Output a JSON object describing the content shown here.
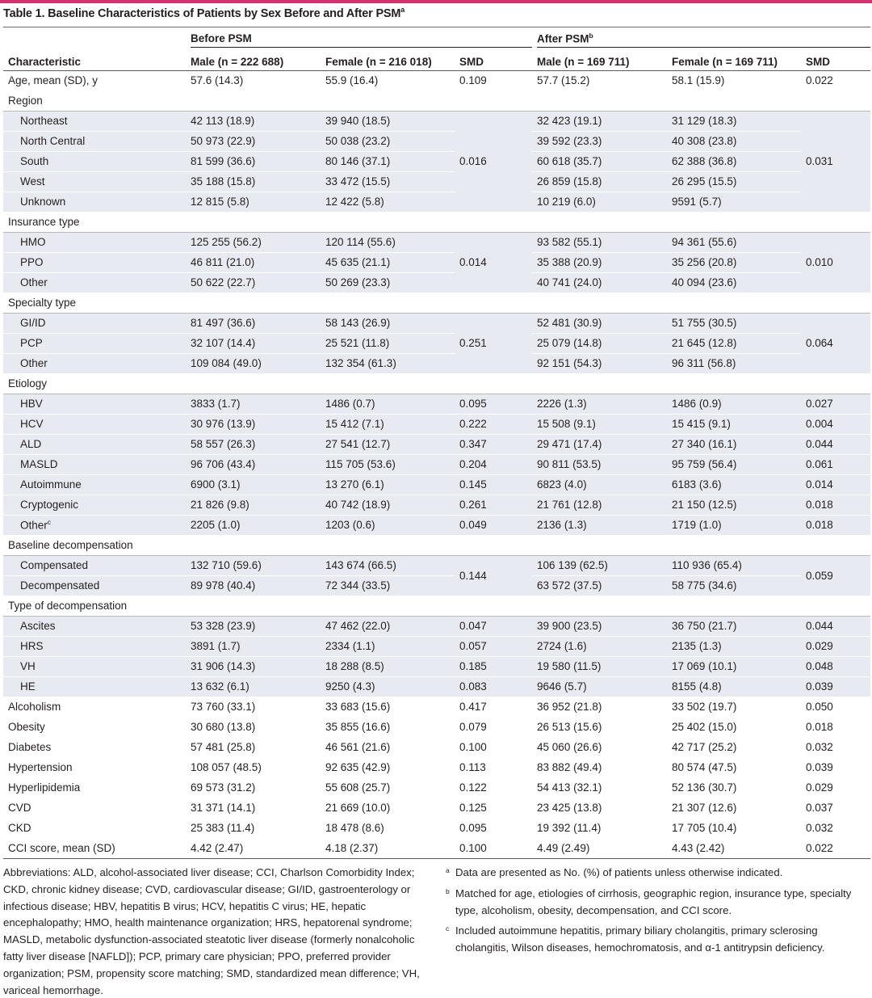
{
  "title": {
    "text": "Table 1. Baseline Characteristics of Patients by Sex Before and After PSM",
    "sup": "a"
  },
  "colors": {
    "accent": "#d2336d",
    "shade": "#e8eaf2"
  },
  "header": {
    "before_group": "Before PSM",
    "after_group": "After PSM",
    "after_sup": "b",
    "characteristic": "Characteristic",
    "before_male": "Male (n = 222 688)",
    "before_female": "Female (n = 216 018)",
    "before_smd": "SMD",
    "after_male": "Male (n = 169 711)",
    "after_female": "Female (n = 169 711)",
    "after_smd": "SMD"
  },
  "rows": {
    "age": {
      "label": "Age, mean (SD), y",
      "bm": "57.6 (14.3)",
      "bf": "55.9 (16.4)",
      "bs": "0.109",
      "am": "57.7 (15.2)",
      "af": "58.1 (15.9)",
      "as": "0.022"
    },
    "region": {
      "label": "Region",
      "smd_before": "0.016",
      "smd_after": "0.031",
      "items": [
        {
          "label": "Northeast",
          "bm": "42 113 (18.9)",
          "bf": "39 940 (18.5)",
          "am": "32 423 (19.1)",
          "af": "31 129 (18.3)"
        },
        {
          "label": "North Central",
          "bm": "50 973 (22.9)",
          "bf": "50 038 (23.2)",
          "am": "39 592 (23.3)",
          "af": "40 308 (23.8)"
        },
        {
          "label": "South",
          "bm": "81 599 (36.6)",
          "bf": "80 146 (37.1)",
          "am": "60 618 (35.7)",
          "af": "62 388 (36.8)"
        },
        {
          "label": "West",
          "bm": "35 188 (15.8)",
          "bf": "33 472 (15.5)",
          "am": "26 859 (15.8)",
          "af": "26 295 (15.5)"
        },
        {
          "label": "Unknown",
          "bm": "12 815 (5.8)",
          "bf": "12 422 (5.8)",
          "am": "10 219 (6.0)",
          "af": "9591 (5.7)"
        }
      ]
    },
    "insurance": {
      "label": "Insurance type",
      "smd_before": "0.014",
      "smd_after": "0.010",
      "items": [
        {
          "label": "HMO",
          "bm": "125 255 (56.2)",
          "bf": "120 114 (55.6)",
          "am": "93 582 (55.1)",
          "af": "94 361 (55.6)"
        },
        {
          "label": "PPO",
          "bm": "46 811 (21.0)",
          "bf": "45 635 (21.1)",
          "am": "35 388 (20.9)",
          "af": "35 256 (20.8)"
        },
        {
          "label": "Other",
          "bm": "50 622 (22.7)",
          "bf": "50 269 (23.3)",
          "am": "40 741 (24.0)",
          "af": "40 094 (23.6)"
        }
      ]
    },
    "specialty": {
      "label": "Specialty type",
      "smd_before": "0.251",
      "smd_after": "0.064",
      "items": [
        {
          "label": "GI/ID",
          "bm": "81 497 (36.6)",
          "bf": "58 143 (26.9)",
          "am": "52 481 (30.9)",
          "af": "51 755 (30.5)"
        },
        {
          "label": "PCP",
          "bm": "32 107 (14.4)",
          "bf": "25 521 (11.8)",
          "am": "25 079 (14.8)",
          "af": "21 645 (12.8)"
        },
        {
          "label": "Other",
          "bm": "109 084 (49.0)",
          "bf": "132 354 (61.3)",
          "am": "92 151 (54.3)",
          "af": "96 311 (56.8)"
        }
      ]
    },
    "etiology": {
      "label": "Etiology",
      "items": [
        {
          "label": "HBV",
          "bm": "3833 (1.7)",
          "bf": "1486 (0.7)",
          "bs": "0.095",
          "am": "2226 (1.3)",
          "af": "1486 (0.9)",
          "as": "0.027"
        },
        {
          "label": "HCV",
          "bm": "30 976 (13.9)",
          "bf": "15 412 (7.1)",
          "bs": "0.222",
          "am": "15 508 (9.1)",
          "af": "15 415 (9.1)",
          "as": "0.004"
        },
        {
          "label": "ALD",
          "bm": "58 557 (26.3)",
          "bf": "27 541 (12.7)",
          "bs": "0.347",
          "am": "29 471 (17.4)",
          "af": "27 340 (16.1)",
          "as": "0.044"
        },
        {
          "label": "MASLD",
          "bm": "96 706 (43.4)",
          "bf": "115 705 (53.6)",
          "bs": "0.204",
          "am": "90 811 (53.5)",
          "af": "95 759 (56.4)",
          "as": "0.061"
        },
        {
          "label": "Autoimmune",
          "bm": "6900 (3.1)",
          "bf": "13 270 (6.1)",
          "bs": "0.145",
          "am": "6823 (4.0)",
          "af": "6183 (3.6)",
          "as": "0.014"
        },
        {
          "label": "Cryptogenic",
          "bm": "21 826 (9.8)",
          "bf": "40 742 (18.9)",
          "bs": "0.261",
          "am": "21 761 (12.8)",
          "af": "21 150 (12.5)",
          "as": "0.018"
        },
        {
          "label": "Other",
          "sup": "c",
          "bm": "2205 (1.0)",
          "bf": "1203 (0.6)",
          "bs": "0.049",
          "am": "2136 (1.3)",
          "af": "1719 (1.0)",
          "as": "0.018"
        }
      ]
    },
    "decomp": {
      "label": "Baseline decompensation",
      "smd_before": "0.144",
      "smd_after": "0.059",
      "items": [
        {
          "label": "Compensated",
          "bm": "132 710 (59.6)",
          "bf": "143 674 (66.5)",
          "am": "106 139 (62.5)",
          "af": "110 936 (65.4)"
        },
        {
          "label": "Decompensated",
          "bm": "89 978 (40.4)",
          "bf": "72 344 (33.5)",
          "am": "63 572 (37.5)",
          "af": "58 775 (34.6)"
        }
      ]
    },
    "decomp_type": {
      "label": "Type of decompensation",
      "items": [
        {
          "label": "Ascites",
          "bm": "53 328 (23.9)",
          "bf": "47 462 (22.0)",
          "bs": "0.047",
          "am": "39 900 (23.5)",
          "af": "36 750 (21.7)",
          "as": "0.044"
        },
        {
          "label": "HRS",
          "bm": "3891 (1.7)",
          "bf": "2334 (1.1)",
          "bs": "0.057",
          "am": "2724 (1.6)",
          "af": "2135 (1.3)",
          "as": "0.029"
        },
        {
          "label": "VH",
          "bm": "31 906 (14.3)",
          "bf": "18 288 (8.5)",
          "bs": "0.185",
          "am": "19 580 (11.5)",
          "af": "17 069 (10.1)",
          "as": "0.048"
        },
        {
          "label": "HE",
          "bm": "13 632 (6.1)",
          "bf": "9250 (4.3)",
          "bs": "0.083",
          "am": "9646 (5.7)",
          "af": "8155 (4.8)",
          "as": "0.039"
        }
      ]
    },
    "alcoholism": {
      "label": "Alcoholism",
      "bm": "73 760 (33.1)",
      "bf": "33 683 (15.6)",
      "bs": "0.417",
      "am": "36 952 (21.8)",
      "af": "33 502 (19.7)",
      "as": "0.050"
    },
    "obesity": {
      "label": "Obesity",
      "bm": "30 680 (13.8)",
      "bf": "35 855 (16.6)",
      "bs": "0.079",
      "am": "26 513 (15.6)",
      "af": "25 402 (15.0)",
      "as": "0.018"
    },
    "diabetes": {
      "label": "Diabetes",
      "bm": "57 481 (25.8)",
      "bf": "46 561 (21.6)",
      "bs": "0.100",
      "am": "45 060 (26.6)",
      "af": "42 717 (25.2)",
      "as": "0.032"
    },
    "hypertension": {
      "label": "Hypertension",
      "bm": "108 057 (48.5)",
      "bf": "92 635 (42.9)",
      "bs": "0.113",
      "am": "83 882 (49.4)",
      "af": "80 574 (47.5)",
      "as": "0.039"
    },
    "hyperlipidemia": {
      "label": "Hyperlipidemia",
      "bm": "69 573 (31.2)",
      "bf": "55 608 (25.7)",
      "bs": "0.122",
      "am": "54 413 (32.1)",
      "af": "52 136 (30.7)",
      "as": "0.029"
    },
    "cvd": {
      "label": "CVD",
      "bm": "31 371 (14.1)",
      "bf": "21 669 (10.0)",
      "bs": "0.125",
      "am": "23 425 (13.8)",
      "af": "21 307 (12.6)",
      "as": "0.037"
    },
    "ckd": {
      "label": "CKD",
      "bm": "25 383 (11.4)",
      "bf": "18 478 (8.6)",
      "bs": "0.095",
      "am": "19 392 (11.4)",
      "af": "17 705 (10.4)",
      "as": "0.032"
    },
    "cci": {
      "label": "CCI score, mean (SD)",
      "bm": "4.42 (2.47)",
      "bf": "4.18 (2.37)",
      "bs": "0.100",
      "am": "4.49 (2.49)",
      "af": "4.43 (2.42)",
      "as": "0.022"
    }
  },
  "footer": {
    "abbreviations": "Abbreviations: ALD, alcohol-associated liver disease; CCI, Charlson Comorbidity Index; CKD, chronic kidney disease; CVD, cardiovascular disease; GI/ID, gastroenterology or infectious disease; HBV, hepatitis B virus; HCV, hepatitis C virus; HE, hepatic encephalopathy; HMO, health maintenance organization; HRS, hepatorenal syndrome; MASLD, metabolic dysfunction-associated steatotic liver disease (formerly nonalcoholic fatty liver disease [NAFLD]); PCP, primary care physician; PPO, preferred provider organization; PSM, propensity score matching; SMD, standardized mean difference; VH, variceal hemorrhage.",
    "notes": [
      {
        "mark": "a",
        "text": "Data are presented as No. (%) of patients unless otherwise indicated."
      },
      {
        "mark": "b",
        "text": "Matched for age, etiologies of cirrhosis, geographic region, insurance type, specialty type, alcoholism, obesity, decompensation, and CCI score."
      },
      {
        "mark": "c",
        "text": "Included autoimmune hepatitis, primary biliary cholangitis, primary sclerosing cholangitis, Wilson diseases, hemochromatosis, and α-1 antitrypsin deficiency."
      }
    ]
  }
}
